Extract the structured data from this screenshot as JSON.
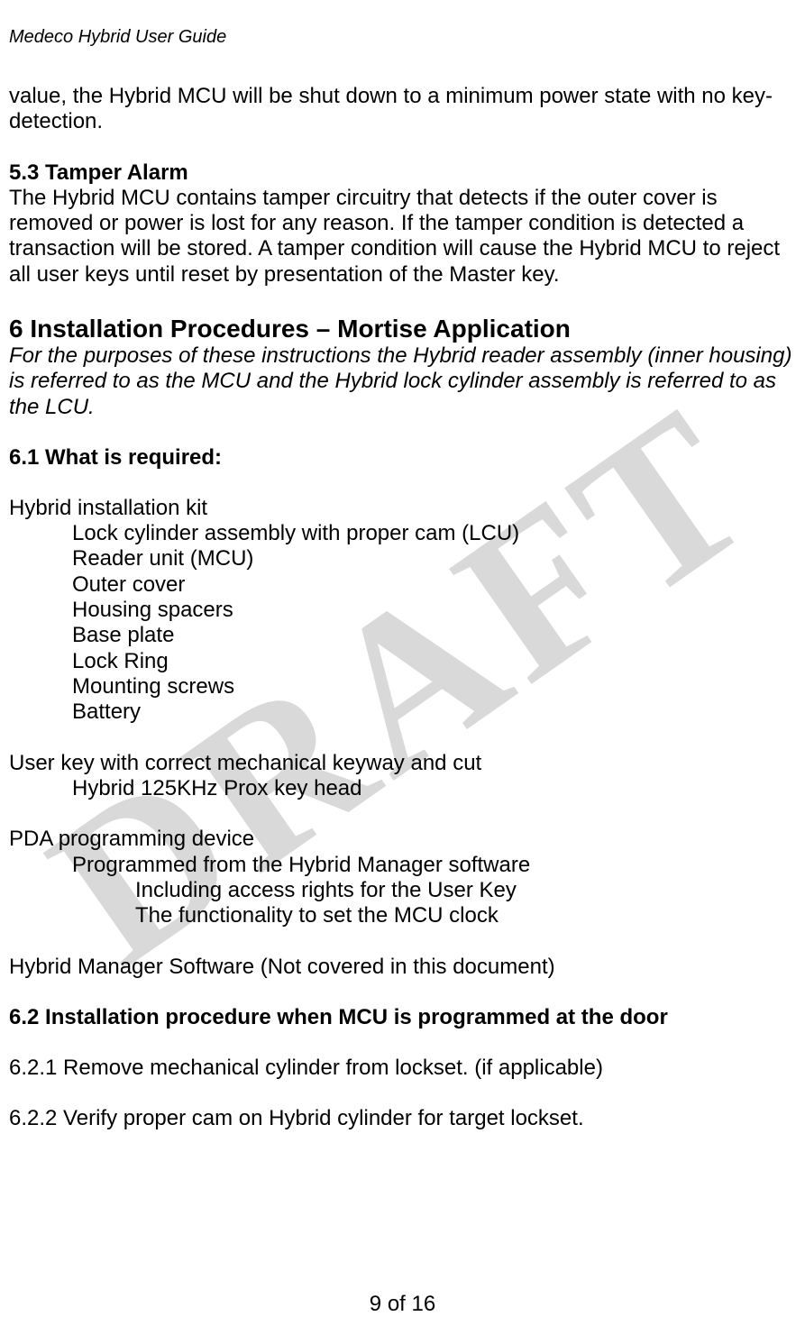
{
  "doc_header": "Medeco Hybrid User Guide",
  "watermark_text": "DRAFT",
  "intro_continuation": "value, the Hybrid MCU will be shut down to a minimum power state with no key-detection.",
  "section_5_3": {
    "heading": "5.3    Tamper Alarm",
    "body": "The Hybrid MCU contains tamper circuitry that detects if the outer cover is removed or power is lost for any reason. If the tamper condition is detected a transaction will be stored. A tamper condition will cause the Hybrid MCU to reject all user keys until reset by presentation of the Master key."
  },
  "section_6": {
    "heading": "6    Installation Procedures – Mortise Application",
    "intro_italic": "For the purposes of these instructions the Hybrid reader assembly (inner housing) is referred to as the MCU and the Hybrid lock cylinder assembly is referred to as the LCU."
  },
  "section_6_1": {
    "heading": "6.1    What is required:",
    "kit_label": "Hybrid installation kit",
    "kit_items": [
      "Lock cylinder assembly with proper cam (LCU)",
      "Reader unit (MCU)",
      "Outer cover",
      "Housing spacers",
      "Base plate",
      "Lock Ring",
      "Mounting screws",
      "Battery"
    ],
    "user_key_label": "User key with correct mechanical keyway and cut",
    "user_key_items": [
      "Hybrid 125KHz Prox key head"
    ],
    "pda_label": "PDA programming device",
    "pda_items": [
      "Programmed from the Hybrid Manager software"
    ],
    "pda_sub_items": [
      "Including access rights for the User Key",
      "The functionality to set the MCU clock"
    ],
    "hm_software": "Hybrid Manager Software (Not covered in this document)"
  },
  "section_6_2": {
    "heading": "6.2    Installation procedure when MCU is programmed at the door",
    "step_1": "6.2.1   Remove mechanical cylinder from lockset. (if applicable)",
    "step_2": "6.2.2   Verify proper cam on Hybrid cylinder for target lockset."
  },
  "footer": "9 of 16"
}
